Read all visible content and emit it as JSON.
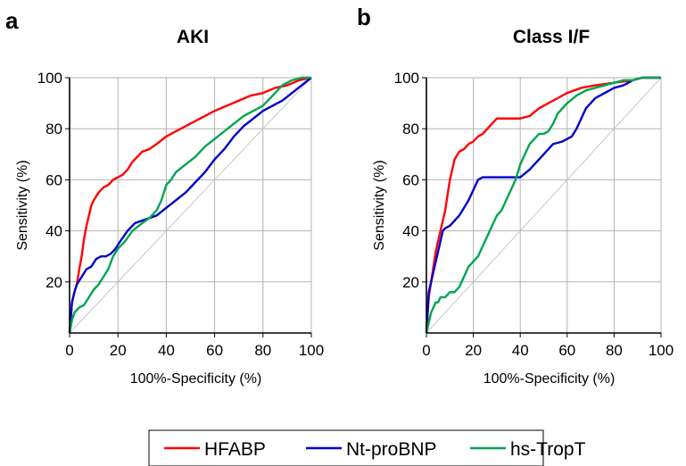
{
  "chart_data": [
    {
      "type": "line",
      "panel_label": "a",
      "title": "AKI",
      "xlabel": "100%-Specificity (%)",
      "ylabel": "Sensitivity (%)",
      "xlim": [
        0,
        100
      ],
      "ylim": [
        0,
        100
      ],
      "xticks": [
        0,
        20,
        40,
        60,
        80,
        100
      ],
      "yticks": [
        20,
        40,
        60,
        80,
        100
      ],
      "grid": true,
      "reference_line": "diagonal",
      "series": [
        {
          "name": "HFABP",
          "color": "#ff0000",
          "x": [
            0,
            1,
            2,
            3,
            4,
            5,
            6,
            7,
            8,
            9,
            10,
            12,
            14,
            16,
            18,
            20,
            22,
            24,
            26,
            28,
            30,
            33,
            36,
            40,
            44,
            48,
            52,
            56,
            60,
            65,
            70,
            75,
            80,
            85,
            90,
            95,
            100
          ],
          "y": [
            0,
            12,
            16,
            19,
            25,
            30,
            37,
            42,
            46,
            50,
            52,
            55,
            57,
            58,
            60,
            61,
            62,
            64,
            67,
            69,
            71,
            72,
            74,
            77,
            79,
            81,
            83,
            85,
            87,
            89,
            91,
            93,
            94,
            96,
            97,
            99,
            100
          ]
        },
        {
          "name": "Nt-proBNP",
          "color": "#0000cc",
          "x": [
            0,
            1,
            2,
            3,
            5,
            7,
            9,
            11,
            13,
            15,
            17,
            19,
            21,
            24,
            27,
            30,
            33,
            36,
            40,
            44,
            48,
            52,
            56,
            60,
            64,
            68,
            72,
            76,
            80,
            84,
            88,
            92,
            96,
            100
          ],
          "y": [
            0,
            12,
            16,
            19,
            22,
            25,
            26,
            29,
            30,
            30,
            31,
            33,
            36,
            40,
            43,
            44,
            45,
            46,
            49,
            52,
            55,
            59,
            63,
            68,
            72,
            77,
            81,
            84,
            87,
            89,
            91,
            94,
            97,
            100
          ]
        },
        {
          "name": "hs-TropT",
          "color": "#00a550",
          "x": [
            0,
            1,
            2,
            4,
            6,
            8,
            10,
            12,
            14,
            16,
            18,
            20,
            23,
            26,
            30,
            33,
            36,
            38,
            40,
            42,
            44,
            48,
            52,
            56,
            60,
            64,
            68,
            72,
            76,
            80,
            84,
            88,
            92,
            96,
            100
          ],
          "y": [
            0,
            5,
            8,
            10,
            11,
            14,
            17,
            19,
            22,
            25,
            30,
            33,
            36,
            40,
            43,
            45,
            48,
            52,
            58,
            60,
            63,
            66,
            69,
            73,
            76,
            79,
            82,
            85,
            87,
            89,
            93,
            97,
            99,
            100,
            100
          ]
        }
      ]
    },
    {
      "type": "line",
      "panel_label": "b",
      "title": "Class I/F",
      "xlabel": "100%-Specificity (%)",
      "ylabel": "Sensitivity (%)",
      "xlim": [
        0,
        100
      ],
      "ylim": [
        0,
        100
      ],
      "xticks": [
        0,
        20,
        40,
        60,
        80,
        100
      ],
      "yticks": [
        20,
        40,
        60,
        80,
        100
      ],
      "grid": true,
      "reference_line": "diagonal",
      "series": [
        {
          "name": "HFABP",
          "color": "#ff0000",
          "x": [
            0,
            1,
            2,
            3,
            4,
            5,
            6,
            7,
            8,
            9,
            10,
            11,
            12,
            14,
            16,
            18,
            20,
            22,
            24,
            26,
            28,
            30,
            33,
            36,
            40,
            44,
            48,
            52,
            56,
            60,
            66,
            72,
            80,
            88,
            92,
            100
          ],
          "y": [
            0,
            14,
            20,
            26,
            32,
            36,
            40,
            44,
            48,
            54,
            60,
            64,
            68,
            71,
            72,
            74,
            75,
            77,
            78,
            80,
            82,
            84,
            84,
            84,
            84,
            85,
            88,
            90,
            92,
            94,
            96,
            97,
            98,
            99,
            100,
            100
          ]
        },
        {
          "name": "Nt-proBNP",
          "color": "#0000cc",
          "x": [
            0,
            1,
            2,
            3,
            4,
            5,
            6,
            7,
            8,
            10,
            12,
            14,
            16,
            18,
            20,
            22,
            24,
            30,
            36,
            40,
            44,
            50,
            54,
            58,
            62,
            64,
            66,
            68,
            70,
            72,
            76,
            80,
            84,
            88,
            92,
            100
          ],
          "y": [
            0,
            16,
            20,
            24,
            28,
            32,
            36,
            40,
            41,
            42,
            44,
            46,
            49,
            52,
            56,
            60,
            61,
            61,
            61,
            61,
            64,
            70,
            74,
            75,
            77,
            80,
            84,
            88,
            90,
            92,
            94,
            96,
            97,
            99,
            100,
            100
          ]
        },
        {
          "name": "hs-TropT",
          "color": "#00a550",
          "x": [
            0,
            1,
            2,
            3,
            4,
            5,
            6,
            8,
            10,
            12,
            14,
            16,
            18,
            20,
            22,
            24,
            26,
            28,
            30,
            32,
            34,
            36,
            38,
            40,
            42,
            44,
            46,
            48,
            50,
            52,
            54,
            56,
            58,
            60,
            64,
            68,
            72,
            76,
            80,
            84,
            88,
            92,
            100
          ],
          "y": [
            0,
            4,
            8,
            10,
            12,
            12,
            14,
            14,
            16,
            16,
            18,
            22,
            26,
            28,
            30,
            34,
            38,
            42,
            46,
            48,
            52,
            56,
            60,
            66,
            70,
            74,
            76,
            78,
            78,
            79,
            82,
            86,
            88,
            90,
            93,
            95,
            96,
            97,
            98,
            99,
            99,
            100,
            100
          ]
        }
      ]
    }
  ],
  "legend": {
    "placement": "bottom",
    "items": [
      {
        "label": "HFABP",
        "color": "#ff0000"
      },
      {
        "label": "Nt-proBNP",
        "color": "#0000cc"
      },
      {
        "label": "hs-TropT",
        "color": "#00a550"
      }
    ]
  }
}
